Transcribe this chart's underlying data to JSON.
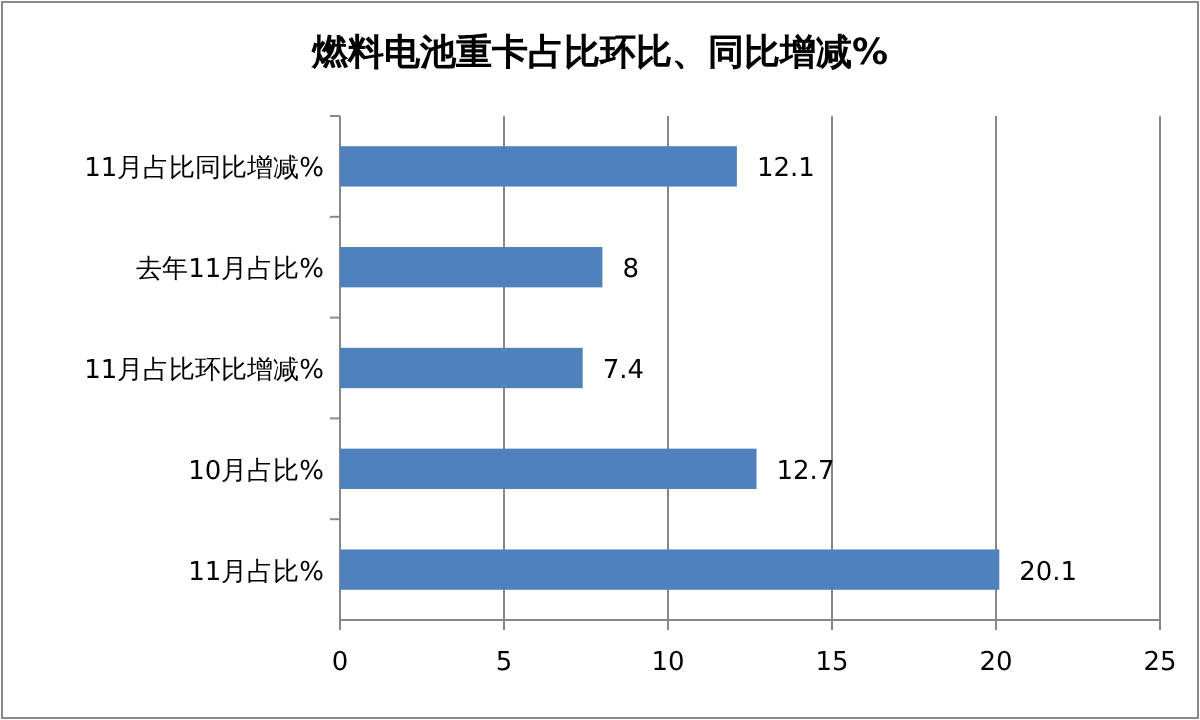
{
  "chart_data": {
    "type": "bar",
    "orientation": "horizontal",
    "title": "燃料电池重卡占比环比、同比增减%",
    "categories": [
      "11月占比同比增减%",
      "去年11月占比%",
      "11月占比环比增减%",
      "10月占比%",
      "11月占比%"
    ],
    "values": [
      12.1,
      8,
      7.4,
      12.7,
      20.1
    ],
    "color": "#4f81bd",
    "xlim": [
      0,
      25
    ],
    "xticks": [
      0,
      5,
      10,
      15,
      20,
      25
    ],
    "grid": "x",
    "data_labels": true
  }
}
